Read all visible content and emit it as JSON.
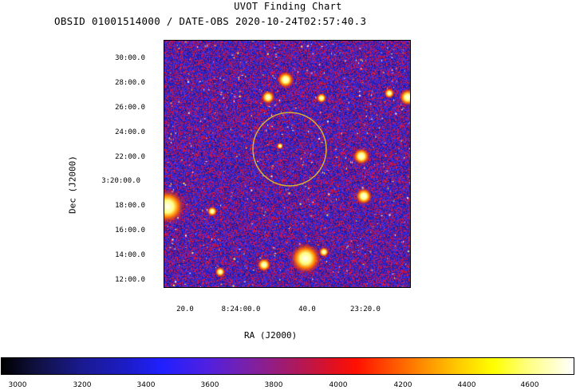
{
  "title": "UVOT Finding Chart",
  "subtitle": "OBSID 01001514000 / DATE-OBS 2020-10-24T02:57:40.3",
  "dec_axis": {
    "label": "Dec (J2000)",
    "ticks": [
      "30:00.0",
      "28:00.0",
      "26:00.0",
      "24:00.0",
      "22:00.0",
      "3:20:00.0",
      "18:00.0",
      "16:00.0",
      "14:00.0",
      "12:00.0"
    ]
  },
  "ra_axis": {
    "label": "RA (J2000)",
    "ticks": [
      "20.0",
      "8:24:00.0",
      "40.0",
      "23:20.0"
    ]
  },
  "colorbar": {
    "ticks": [
      "3000",
      "3200",
      "3400",
      "3600",
      "3800",
      "4000",
      "4200",
      "4400",
      "4600"
    ]
  },
  "colors": {
    "circle": "#d8b030",
    "background_noise": [
      "#2020c0",
      "#3030ff",
      "#c01060",
      "#ff2020"
    ]
  }
}
